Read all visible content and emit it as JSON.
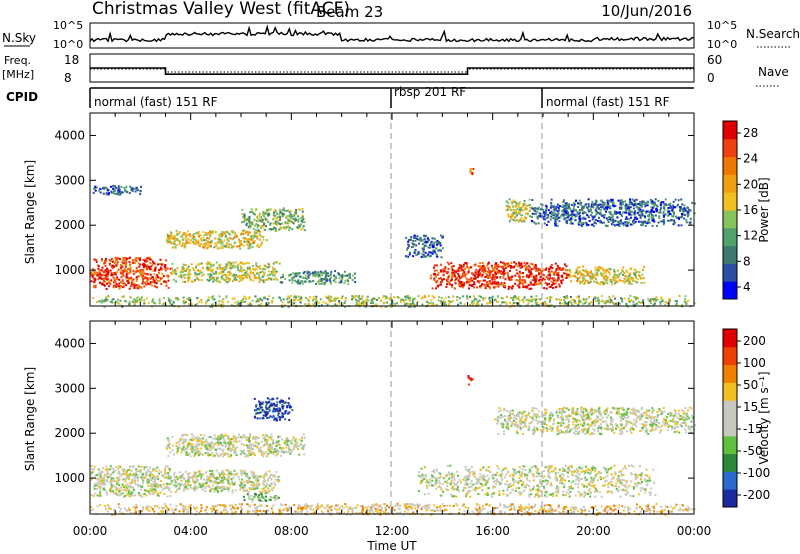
{
  "header": {
    "station": "Christmas Valley West (fitACF)",
    "beam": "Beam 23",
    "date": "10/Jun/2016"
  },
  "top_panels": {
    "nsky_label": "N.Sky",
    "nsky_ticks": [
      "10^5",
      "10^0"
    ],
    "nsearch_label": "N.Search",
    "freq_label_line1": "Freq.",
    "freq_label_line2": "[MHz]",
    "freq_ticks": [
      "18",
      "8"
    ],
    "nave_ticks": [
      "60",
      "0"
    ],
    "nave_label": "Nave",
    "cpid_label": "CPID"
  },
  "cpid_segments": [
    {
      "label": "normal (fast) 151 RF",
      "start_hour": 0
    },
    {
      "label": "rbsp 201 RF",
      "start_hour": 12
    },
    {
      "label": "normal (fast) 151 RF",
      "start_hour": 18
    }
  ],
  "colors": {
    "power_scale": [
      "#0000ff",
      "#2a4fa3",
      "#3d7a6d",
      "#4fa36a",
      "#86c35a",
      "#f0c020",
      "#f0a010",
      "#f07800",
      "#f04010",
      "#e00000"
    ],
    "velocity_scale": [
      "#1a2aa0",
      "#2a6ad0",
      "#2a8a3a",
      "#60c040",
      "#c8c8c0",
      "#c8c8c0",
      "#f0c020",
      "#f08000",
      "#f04000",
      "#e00000"
    ]
  },
  "chart_data": [
    {
      "type": "heatmap",
      "ylabel": "Slant Range [km]",
      "yticks": [
        "4000",
        "3000",
        "2000",
        "1000"
      ],
      "ylim": [
        200,
        4500
      ],
      "xlim": [
        0,
        24
      ],
      "colorbar_label": "Power [dB]",
      "colorbar_ticks": [
        "28",
        "24",
        "20",
        "16",
        "12",
        "8",
        "4"
      ],
      "scatter_regions": [
        {
          "t0": 0.0,
          "t1": 3.2,
          "r0": 600,
          "r1": 1300,
          "level": 0.85
        },
        {
          "t0": 3.2,
          "t1": 7.5,
          "r0": 750,
          "r1": 1200,
          "level": 0.5
        },
        {
          "t0": 7.5,
          "t1": 10.5,
          "r0": 700,
          "r1": 1000,
          "level": 0.3
        },
        {
          "t0": 3.0,
          "t1": 7.0,
          "r0": 1500,
          "r1": 1900,
          "level": 0.55
        },
        {
          "t0": 6.0,
          "t1": 8.5,
          "r0": 1900,
          "r1": 2400,
          "level": 0.4
        },
        {
          "t0": 0.0,
          "t1": 2.0,
          "r0": 2700,
          "r1": 2900,
          "level": 0.2
        },
        {
          "t0": 12.5,
          "t1": 14.0,
          "r0": 1300,
          "r1": 1800,
          "level": 0.2
        },
        {
          "t0": 13.5,
          "t1": 19.0,
          "r0": 600,
          "r1": 1200,
          "level": 0.9
        },
        {
          "t0": 19.0,
          "t1": 22.0,
          "r0": 700,
          "r1": 1100,
          "level": 0.55
        },
        {
          "t0": 17.5,
          "t1": 24.0,
          "r0": 2000,
          "r1": 2600,
          "level": 0.2
        },
        {
          "t0": 16.5,
          "t1": 17.5,
          "r0": 2100,
          "r1": 2600,
          "level": 0.5
        },
        {
          "t0": 15.0,
          "t1": 15.2,
          "r0": 3100,
          "r1": 3300,
          "level": 0.75
        },
        {
          "t0": 0.0,
          "t1": 24.0,
          "r0": 200,
          "r1": 450,
          "level": 0.45
        }
      ]
    },
    {
      "type": "heatmap",
      "ylabel": "Slant Range [km]",
      "yticks": [
        "4000",
        "3000",
        "2000",
        "1000"
      ],
      "ylim": [
        200,
        4500
      ],
      "xlim": [
        0,
        24
      ],
      "xticks": [
        "00:00",
        "04:00",
        "08:00",
        "12:00",
        "16:00",
        "20:00",
        "00:00"
      ],
      "xlabel": "Time UT",
      "colorbar_label": "Velocity [m s⁻¹]",
      "colorbar_ticks": [
        "200",
        "100",
        "50",
        "15",
        "-15",
        "-50",
        "-100",
        "-200"
      ],
      "scatter_regions": [
        {
          "t0": 0.0,
          "t1": 3.2,
          "r0": 600,
          "r1": 1300,
          "level": 0.5
        },
        {
          "t0": 3.2,
          "t1": 7.5,
          "r0": 700,
          "r1": 1200,
          "level": 0.5
        },
        {
          "t0": 6.0,
          "t1": 7.5,
          "r0": 500,
          "r1": 700,
          "level": 0.35
        },
        {
          "t0": 3.0,
          "t1": 8.5,
          "r0": 1500,
          "r1": 2000,
          "level": 0.5
        },
        {
          "t0": 6.5,
          "t1": 8.0,
          "r0": 2300,
          "r1": 2800,
          "level": 0.05
        },
        {
          "t0": 13.0,
          "t1": 22.5,
          "r0": 600,
          "r1": 1300,
          "level": 0.5
        },
        {
          "t0": 16.0,
          "t1": 24.0,
          "r0": 2000,
          "r1": 2600,
          "level": 0.5
        },
        {
          "t0": 15.0,
          "t1": 15.2,
          "r0": 3100,
          "r1": 3300,
          "level": 0.95
        },
        {
          "t0": 0.0,
          "t1": 24.0,
          "r0": 200,
          "r1": 450,
          "level": 0.62
        }
      ]
    }
  ]
}
